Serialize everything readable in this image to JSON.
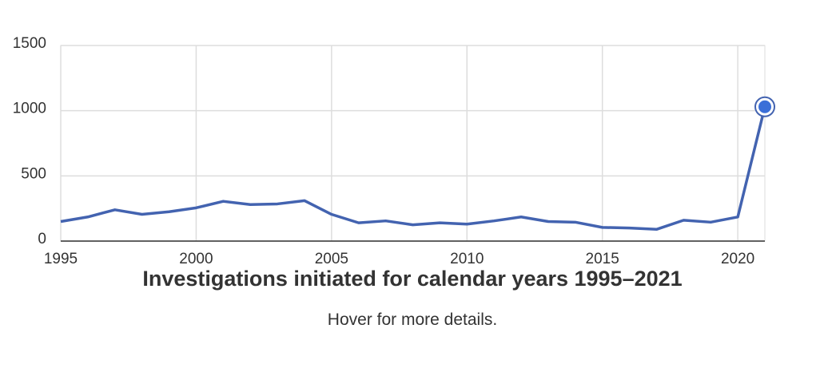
{
  "chart_data": {
    "type": "line",
    "title": "Investigations initiated for calendar years 1995–2021",
    "subtitle": "Hover for more details.",
    "x": [
      1995,
      1996,
      1997,
      1998,
      1999,
      2000,
      2001,
      2002,
      2003,
      2004,
      2005,
      2006,
      2007,
      2008,
      2009,
      2010,
      2011,
      2012,
      2013,
      2014,
      2015,
      2016,
      2017,
      2018,
      2019,
      2020,
      2021
    ],
    "values": [
      150,
      185,
      240,
      205,
      225,
      255,
      305,
      280,
      285,
      310,
      205,
      140,
      155,
      125,
      140,
      130,
      155,
      185,
      150,
      145,
      105,
      100,
      90,
      160,
      145,
      185,
      1030
    ],
    "color": "#4363b0",
    "xlim": [
      1995,
      2021
    ],
    "xticks": [
      1995,
      2000,
      2005,
      2010,
      2015,
      2020
    ],
    "ylim": [
      0,
      1500
    ],
    "yticks": [
      0,
      500,
      1000,
      1500
    ],
    "grid": true
  }
}
